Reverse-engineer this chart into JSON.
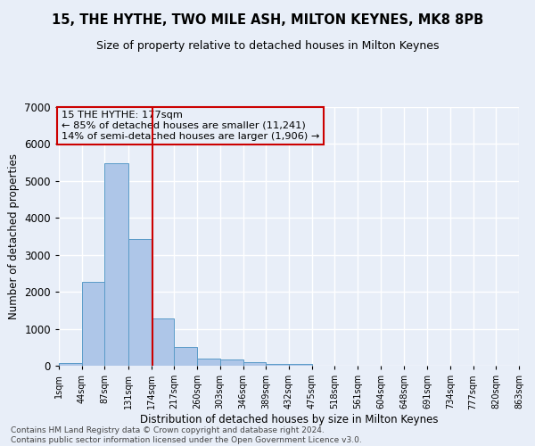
{
  "title1": "15, THE HYTHE, TWO MILE ASH, MILTON KEYNES, MK8 8PB",
  "title2": "Size of property relative to detached houses in Milton Keynes",
  "xlabel": "Distribution of detached houses by size in Milton Keynes",
  "ylabel": "Number of detached properties",
  "footnote1": "Contains HM Land Registry data © Crown copyright and database right 2024.",
  "footnote2": "Contains public sector information licensed under the Open Government Licence v3.0.",
  "annotation_line1": "15 THE HYTHE: 177sqm",
  "annotation_line2": "← 85% of detached houses are smaller (11,241)",
  "annotation_line3": "14% of semi-detached houses are larger (1,906) →",
  "bar_edges": [
    1,
    44,
    87,
    131,
    174,
    217,
    260,
    303,
    346,
    389,
    432,
    475,
    518,
    561,
    604,
    648,
    691,
    734,
    777,
    820,
    863
  ],
  "bar_heights": [
    75,
    2280,
    5490,
    3420,
    1290,
    500,
    185,
    175,
    85,
    55,
    50,
    0,
    0,
    0,
    0,
    0,
    0,
    0,
    0,
    0
  ],
  "bar_color": "#aec6e8",
  "bar_edge_color": "#5a9bc8",
  "vline_color": "#cc0000",
  "vline_x": 177,
  "ylim": [
    0,
    7000
  ],
  "xlim": [
    1,
    863
  ],
  "bg_color": "#e8eef8",
  "grid_color": "#ffffff",
  "annotation_box_color": "#cc0000"
}
